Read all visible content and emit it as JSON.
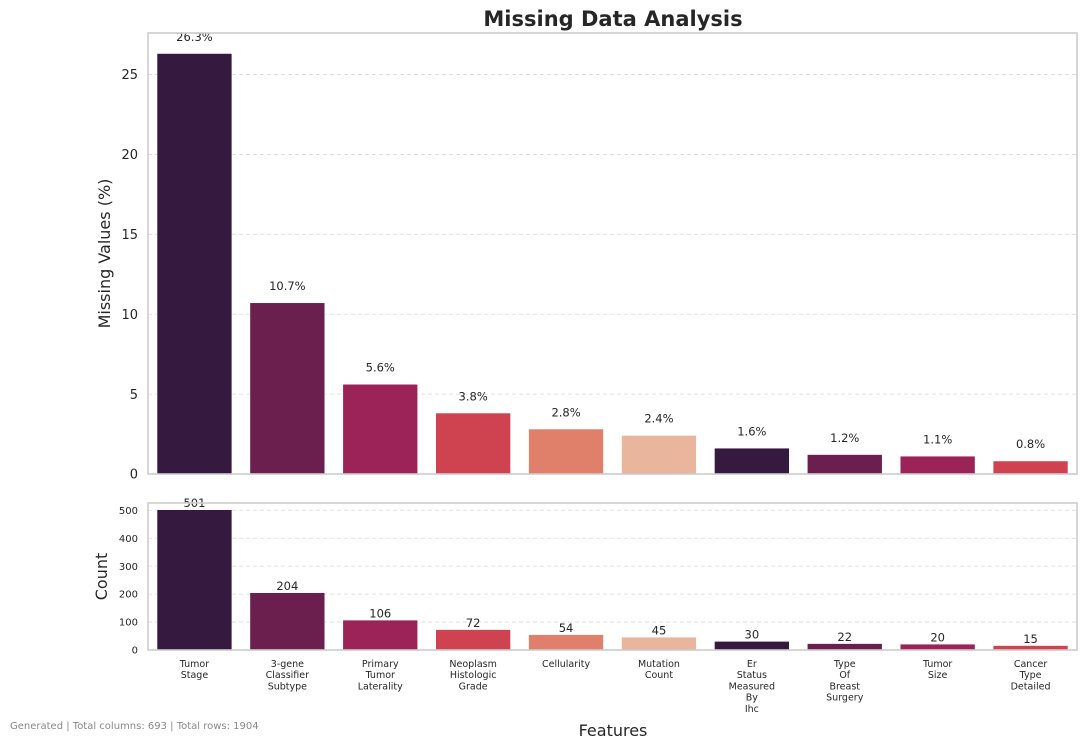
{
  "footer_text": "Generated | Total columns: 693 | Total rows: 1904",
  "chart_data": {
    "type": "bar",
    "title": "Missing Data Analysis",
    "xlabel": "Features",
    "categories": [
      [
        "Tumor",
        "Stage"
      ],
      [
        "3-gene",
        "Classifier",
        "Subtype"
      ],
      [
        "Primary",
        "Tumor",
        "Laterality"
      ],
      [
        "Neoplasm",
        "Histologic",
        "Grade"
      ],
      [
        "Cellularity"
      ],
      [
        "Mutation",
        "Count"
      ],
      [
        "Er",
        "Status",
        "Measured",
        "By",
        "Ihc"
      ],
      [
        "Type",
        "Of",
        "Breast",
        "Surgery"
      ],
      [
        "Tumor",
        "Size"
      ],
      [
        "Cancer",
        "Type",
        "Detailed"
      ]
    ],
    "colors": [
      "#35193e",
      "#6b1f4e",
      "#9b2357",
      "#cf4350",
      "#e0806a",
      "#e9b59c",
      "#35193e",
      "#6b1f4e",
      "#9b2357",
      "#cf4350"
    ],
    "panels": [
      {
        "name": "percent",
        "ylabel": "Missing Values (%)",
        "ylim": [
          0,
          27.6
        ],
        "yticks": [
          0,
          5,
          10,
          15,
          20,
          25
        ],
        "values": [
          26.3,
          10.7,
          5.6,
          3.8,
          2.8,
          2.4,
          1.6,
          1.2,
          1.1,
          0.8
        ],
        "labels": [
          "26.3%",
          "10.7%",
          "5.6%",
          "3.8%",
          "2.8%",
          "2.4%",
          "1.6%",
          "1.2%",
          "1.1%",
          "0.8%"
        ],
        "grid": true
      },
      {
        "name": "count",
        "ylabel": "Count",
        "ylim": [
          0,
          526
        ],
        "yticks": [
          0,
          100,
          200,
          300,
          400,
          500
        ],
        "values": [
          501,
          204,
          106,
          72,
          54,
          45,
          30,
          22,
          20,
          15
        ],
        "labels": [
          "501",
          "204",
          "106",
          "72",
          "54",
          "45",
          "30",
          "22",
          "20",
          "15"
        ],
        "grid": true
      }
    ]
  }
}
